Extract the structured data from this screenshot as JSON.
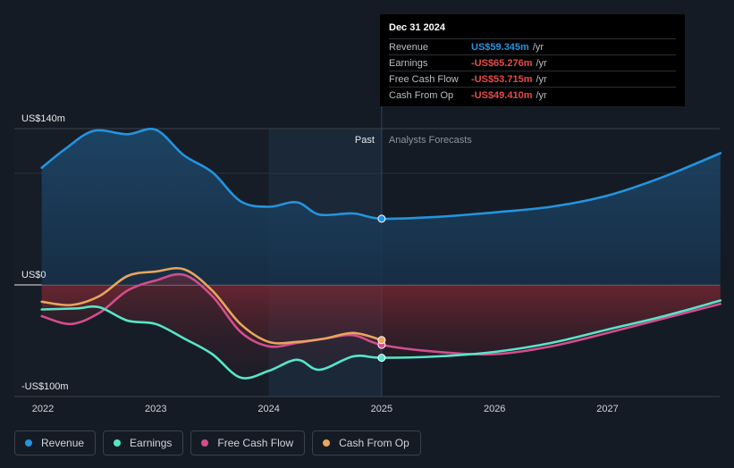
{
  "chart_data": {
    "type": "area",
    "y_unit": "US$ m",
    "y_tick_labels": [
      "US$140m",
      "US$0",
      "-US$100m"
    ],
    "ylim": [
      -100,
      140
    ],
    "x_tick_labels": [
      "2022",
      "2023",
      "2024",
      "2025",
      "2026",
      "2027"
    ],
    "past_label": "Past",
    "forecast_label": "Analysts Forecasts",
    "divider_x": 2025.0,
    "highlight_range": [
      2024.0,
      2025.0
    ],
    "series": [
      {
        "name": "Revenue",
        "color": "#2394df",
        "points": [
          [
            2021.99,
            105
          ],
          [
            2022.2,
            122
          ],
          [
            2022.45,
            138
          ],
          [
            2022.75,
            135
          ],
          [
            2023.0,
            139
          ],
          [
            2023.25,
            116
          ],
          [
            2023.5,
            101
          ],
          [
            2023.75,
            75
          ],
          [
            2024.0,
            70
          ],
          [
            2024.25,
            74
          ],
          [
            2024.45,
            63
          ],
          [
            2024.75,
            64
          ],
          [
            2025.0,
            59.3
          ],
          [
            2025.5,
            61
          ],
          [
            2026.0,
            65
          ],
          [
            2026.5,
            70
          ],
          [
            2027.0,
            80
          ],
          [
            2027.5,
            97
          ],
          [
            2028.0,
            118
          ]
        ]
      },
      {
        "name": "Earnings",
        "color": "#57e6c9",
        "points": [
          [
            2021.99,
            -22
          ],
          [
            2022.3,
            -21
          ],
          [
            2022.5,
            -20
          ],
          [
            2022.75,
            -32
          ],
          [
            2023.0,
            -35
          ],
          [
            2023.25,
            -48
          ],
          [
            2023.5,
            -62
          ],
          [
            2023.75,
            -83
          ],
          [
            2024.0,
            -77
          ],
          [
            2024.25,
            -67
          ],
          [
            2024.45,
            -76
          ],
          [
            2024.75,
            -64
          ],
          [
            2025.0,
            -65.3
          ],
          [
            2025.5,
            -64
          ],
          [
            2026.0,
            -60
          ],
          [
            2026.5,
            -52
          ],
          [
            2027.0,
            -40
          ],
          [
            2027.5,
            -28
          ],
          [
            2028.0,
            -14
          ]
        ]
      },
      {
        "name": "Free Cash Flow",
        "color": "#d34d8e",
        "points": [
          [
            2021.99,
            -28
          ],
          [
            2022.25,
            -35
          ],
          [
            2022.5,
            -25
          ],
          [
            2022.75,
            -5
          ],
          [
            2023.0,
            4
          ],
          [
            2023.25,
            9
          ],
          [
            2023.5,
            -10
          ],
          [
            2023.75,
            -42
          ],
          [
            2024.0,
            -55
          ],
          [
            2024.25,
            -52
          ],
          [
            2024.5,
            -48
          ],
          [
            2024.75,
            -45
          ],
          [
            2025.0,
            -53.7
          ],
          [
            2025.5,
            -60
          ],
          [
            2026.0,
            -62
          ],
          [
            2026.5,
            -55
          ],
          [
            2027.0,
            -43
          ],
          [
            2027.5,
            -30
          ],
          [
            2028.0,
            -17
          ]
        ]
      },
      {
        "name": "Cash From Op",
        "color": "#e8a55c",
        "points": [
          [
            2021.99,
            -15
          ],
          [
            2022.25,
            -18
          ],
          [
            2022.5,
            -10
          ],
          [
            2022.75,
            8
          ],
          [
            2023.0,
            12
          ],
          [
            2023.25,
            14
          ],
          [
            2023.5,
            -5
          ],
          [
            2023.75,
            -35
          ],
          [
            2024.0,
            -51
          ],
          [
            2024.25,
            -51
          ],
          [
            2024.5,
            -48
          ],
          [
            2024.75,
            -43
          ],
          [
            2025.0,
            -49.4
          ]
        ]
      }
    ]
  },
  "tooltip": {
    "date": "Dec 31 2024",
    "rows": [
      {
        "label": "Revenue",
        "value": "US$59.345m",
        "unit": "/yr",
        "color": "#2394df"
      },
      {
        "label": "Earnings",
        "value": "-US$65.276m",
        "unit": "/yr",
        "color": "#e64b4b"
      },
      {
        "label": "Free Cash Flow",
        "value": "-US$53.715m",
        "unit": "/yr",
        "color": "#e64b4b"
      },
      {
        "label": "Cash From Op",
        "value": "-US$49.410m",
        "unit": "/yr",
        "color": "#e64b4b"
      }
    ]
  },
  "legend": [
    {
      "label": "Revenue",
      "color": "#2394df"
    },
    {
      "label": "Earnings",
      "color": "#57e6c9"
    },
    {
      "label": "Free Cash Flow",
      "color": "#d34d8e"
    },
    {
      "label": "Cash From Op",
      "color": "#e8a55c"
    }
  ]
}
